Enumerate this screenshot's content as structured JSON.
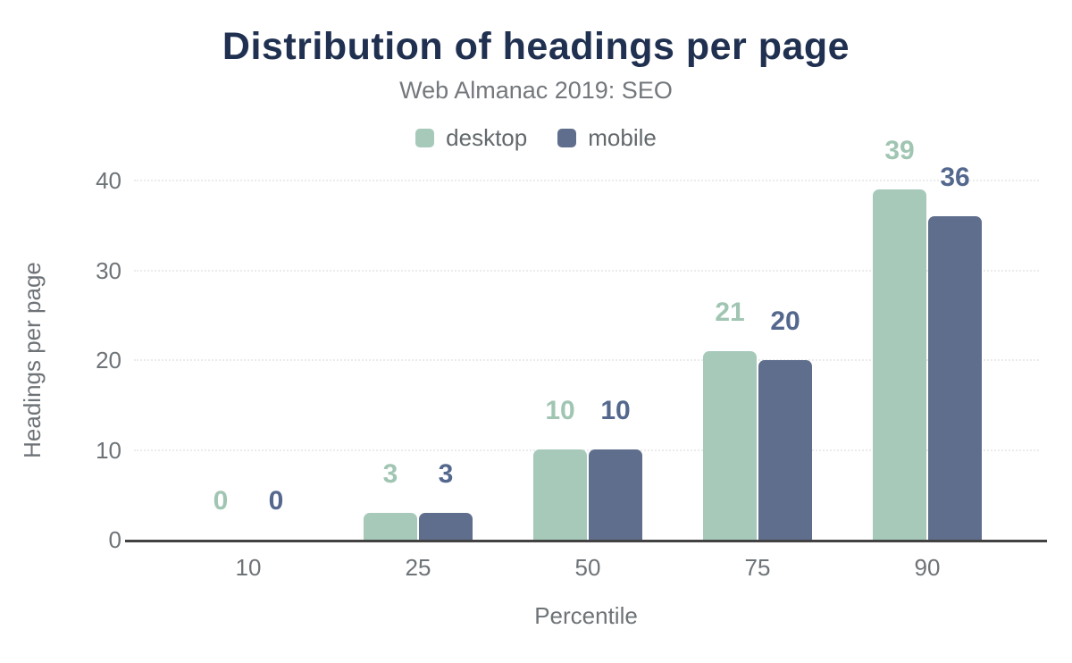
{
  "chart_data": {
    "type": "bar",
    "title": "Distribution of headings per page",
    "subtitle": "Web Almanac 2019: SEO",
    "xlabel": "Percentile",
    "ylabel": "Headings per page",
    "categories": [
      "10",
      "25",
      "50",
      "75",
      "90"
    ],
    "series": [
      {
        "name": "desktop",
        "color": "#a6c9ba",
        "label_color": "#a1c5b3",
        "values": [
          0,
          3,
          10,
          21,
          39
        ]
      },
      {
        "name": "mobile",
        "color": "#5f6e8c",
        "label_color": "#54688e",
        "values": [
          0,
          3,
          10,
          20,
          36
        ]
      }
    ],
    "y_ticks": [
      0,
      10,
      20,
      30,
      40
    ],
    "ylim": [
      0,
      40
    ],
    "grid": true,
    "legend_position": "top",
    "value_labels": true
  },
  "colors": {
    "background": "#ffffff",
    "title": "#203050",
    "subtitle": "#74787c",
    "legend_text": "#63686c",
    "tick_text": "#6e7377",
    "gridline": "#ebebeb",
    "axis_line": "#424242"
  }
}
